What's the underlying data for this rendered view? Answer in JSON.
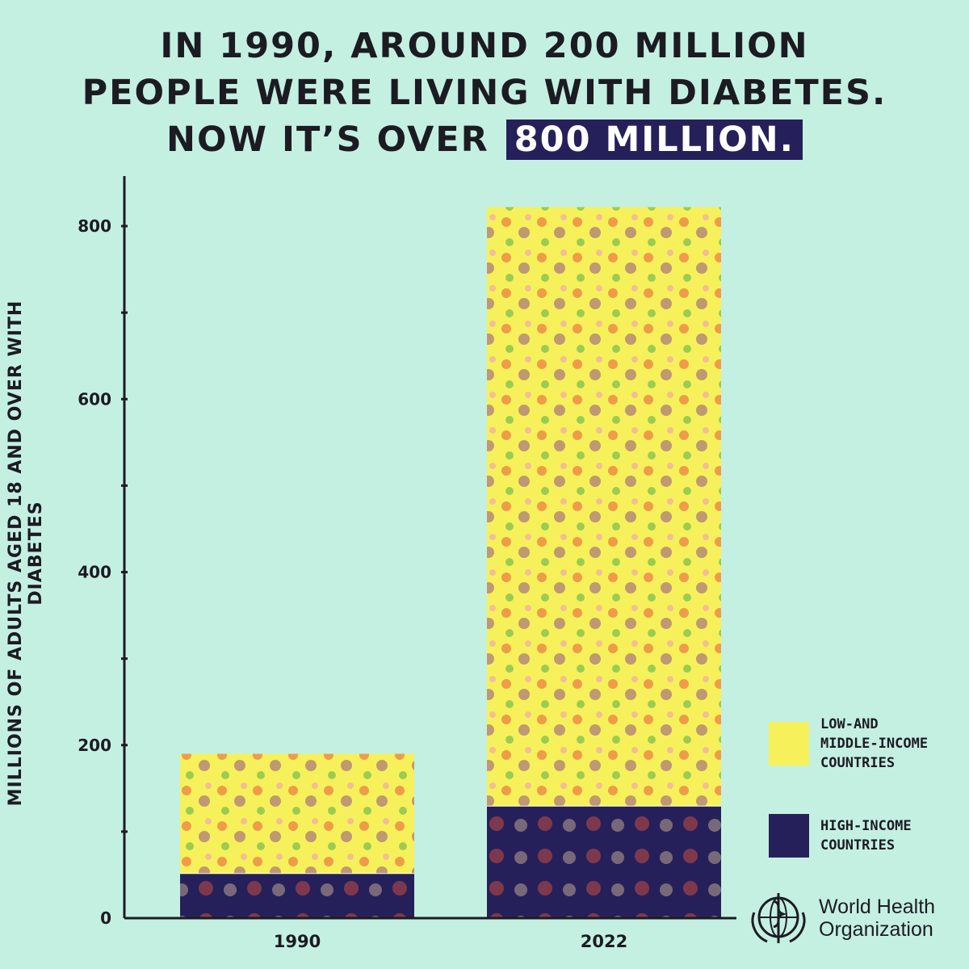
{
  "headline": {
    "line1": "IN 1990, AROUND 200 MILLION",
    "line2": "PEOPLE WERE LIVING WITH DIABETES.",
    "line3_prefix": "NOW IT’S OVER",
    "line3_highlight": "800 MILLION."
  },
  "legend": {
    "lmic": "LOW-AND MIDDLE-INCOME COUNTRIES",
    "hic": "HIGH-INCOME COUNTRIES"
  },
  "logo": {
    "name_line1": "World Health",
    "name_line2": "Organization",
    "icon": "who-emblem-icon"
  },
  "colors": {
    "background": "#c4f0e2",
    "lmic": "#f6f15a",
    "hic": "#26205a",
    "highlight": "#26205a",
    "axis": "#1d1b22"
  },
  "chart_data": {
    "type": "bar",
    "stacked": true,
    "categories": [
      "1990",
      "2022"
    ],
    "series": [
      {
        "name": "HIGH-INCOME COUNTRIES",
        "values": [
          52,
          130
        ]
      },
      {
        "name": "LOW-AND MIDDLE-INCOME COUNTRIES",
        "values": [
          138,
          692
        ]
      }
    ],
    "ylabel": "MILLIONS OF ADULTS AGED 18 AND OVER WITH DIABETES",
    "xlabel": "",
    "ylim": [
      0,
      850
    ],
    "yticks": [
      0,
      200,
      400,
      600,
      800
    ],
    "legend_position": "right"
  }
}
